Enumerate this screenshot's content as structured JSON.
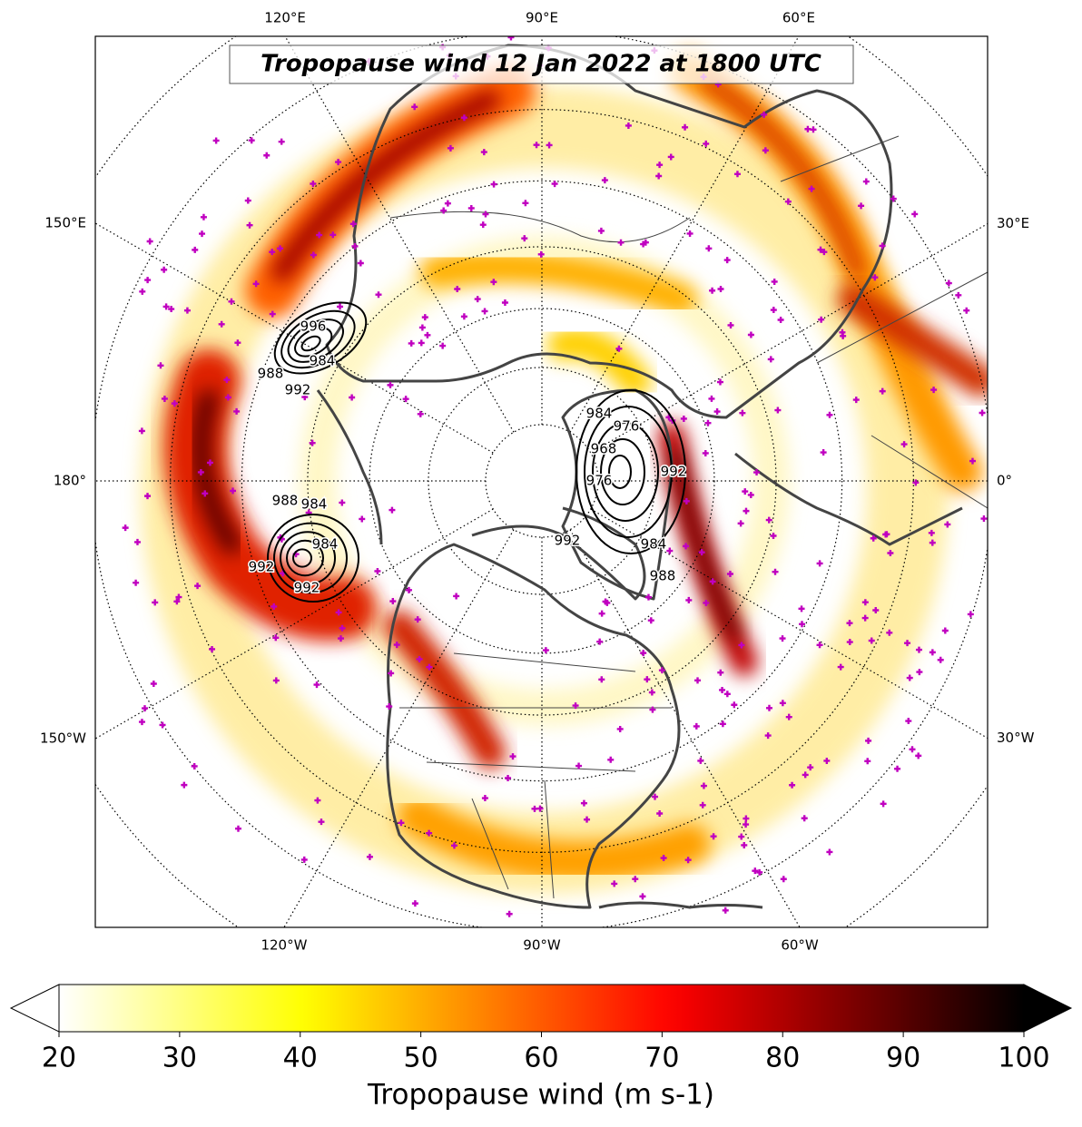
{
  "chart_data": {
    "type": "map",
    "title": "Tropopause wind 12 Jan 2022 at 1800 UTC",
    "projection": "north-polar-stereographic",
    "meridians": [
      {
        "value": 120,
        "label": "120°E"
      },
      {
        "value": 90,
        "label": "90°E"
      },
      {
        "value": 60,
        "label": "60°E"
      },
      {
        "value": 150,
        "label": "150°E"
      },
      {
        "value": 180,
        "label": "180°"
      },
      {
        "value": -150,
        "label": "150°W"
      },
      {
        "value": 30,
        "label": "30°E"
      },
      {
        "value": 0,
        "label": "0°"
      },
      {
        "value": -30,
        "label": "30°W"
      },
      {
        "value": -120,
        "label": "120°W"
      },
      {
        "value": -90,
        "label": "90°W"
      },
      {
        "value": -60,
        "label": "60°W"
      }
    ],
    "parallels": [
      0,
      10,
      20,
      30,
      40,
      50,
      60,
      70,
      80
    ],
    "colorbar": {
      "label": "Tropopause wind (m s-1)",
      "colormap": "hot_r",
      "lim": [
        20,
        100
      ],
      "ticks": [
        20,
        30,
        40,
        50,
        60,
        70,
        80,
        90,
        100
      ],
      "extend": "both"
    },
    "contour_labels": [
      996,
      988,
      984,
      992,
      988,
      984,
      992,
      984,
      992,
      984,
      976,
      968,
      976,
      992,
      992,
      984,
      988
    ],
    "contour_color": "#000000",
    "station_color": "#c000c0"
  }
}
